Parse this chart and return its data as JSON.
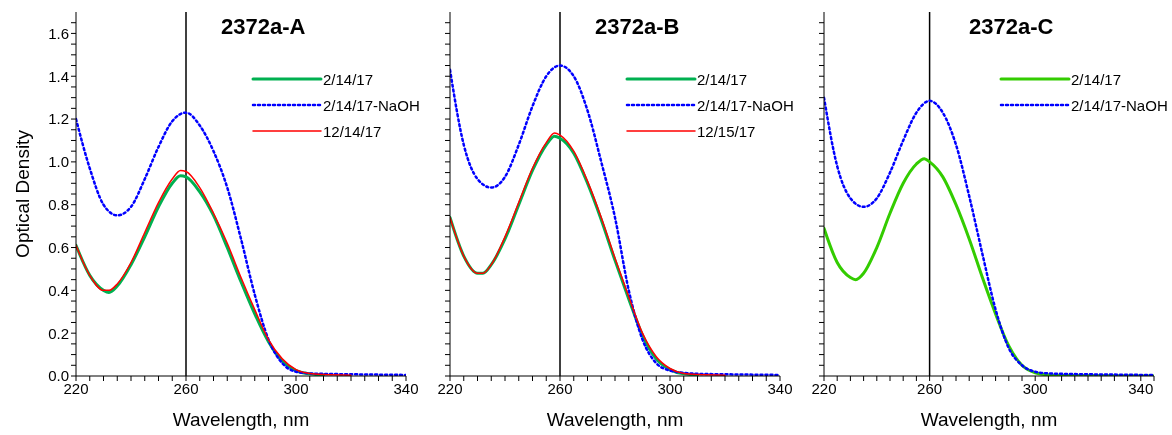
{
  "chart_data": [
    {
      "type": "line",
      "title": "2372a-A",
      "xlabel": "Wavelength, nm",
      "ylabel": "Optical Density",
      "xlim": [
        220,
        340
      ],
      "ylim": [
        0,
        1.7
      ],
      "legend": "top right",
      "grid": false,
      "marker": "none",
      "xticks": [
        220,
        {
          "value": 225,
          "label": null
        },
        {
          "value": 230,
          "label": null
        },
        {
          "value": 235,
          "label": null
        },
        {
          "value": 240,
          "label": null
        },
        {
          "value": 245,
          "label": null
        },
        {
          "value": 250,
          "label": null
        },
        {
          "value": 255,
          "label": null
        },
        260,
        {
          "value": 265,
          "label": null
        },
        {
          "value": 270,
          "label": null
        },
        {
          "value": 275,
          "label": null
        },
        {
          "value": 280,
          "label": null
        },
        {
          "value": 285,
          "label": null
        },
        {
          "value": 290,
          "label": null
        },
        {
          "value": 295,
          "label": null
        },
        300,
        {
          "value": 305,
          "label": null
        },
        {
          "value": 310,
          "label": null
        },
        {
          "value": 315,
          "label": null
        },
        {
          "value": 320,
          "label": null
        },
        {
          "value": 325,
          "label": null
        },
        {
          "value": 330,
          "label": null
        },
        {
          "value": 335,
          "label": null
        },
        340
      ],
      "yticks": [
        {
          "value": 0,
          "label": "0.0"
        },
        {
          "value": 0.05,
          "label": null
        },
        {
          "value": 0.1,
          "label": null
        },
        {
          "value": 0.15,
          "label": null
        },
        {
          "value": 0.2,
          "label": "0.2"
        },
        {
          "value": 0.25,
          "label": null
        },
        {
          "value": 0.3,
          "label": null
        },
        {
          "value": 0.35,
          "label": null
        },
        {
          "value": 0.4,
          "label": "0.4"
        },
        {
          "value": 0.45,
          "label": null
        },
        {
          "value": 0.5,
          "label": null
        },
        {
          "value": 0.55,
          "label": null
        },
        {
          "value": 0.6,
          "label": "0.6"
        },
        {
          "value": 0.65,
          "label": null
        },
        {
          "value": 0.7,
          "label": null
        },
        {
          "value": 0.75,
          "label": null
        },
        {
          "value": 0.8,
          "label": "0.8"
        },
        {
          "value": 0.85,
          "label": null
        },
        {
          "value": 0.9,
          "label": null
        },
        {
          "value": 0.95,
          "label": null
        },
        {
          "value": 1.0,
          "label": "1.0"
        },
        {
          "value": 1.05,
          "label": null
        },
        {
          "value": 1.1,
          "label": null
        },
        {
          "value": 1.15,
          "label": null
        },
        {
          "value": 1.2,
          "label": "1.2"
        },
        {
          "value": 1.25,
          "label": null
        },
        {
          "value": 1.3,
          "label": null
        },
        {
          "value": 1.35,
          "label": null
        },
        {
          "value": 1.4,
          "label": "1.4"
        },
        {
          "value": 1.45,
          "label": null
        },
        {
          "value": 1.5,
          "label": null
        },
        {
          "value": 1.55,
          "label": null
        },
        {
          "value": 1.6,
          "label": "1.6"
        },
        {
          "value": 1.65,
          "label": null
        }
      ],
      "ref_lines": [
        {
          "axis": "x",
          "value": 260,
          "label": null,
          "color": "#000000"
        }
      ],
      "series": [
        {
          "name": "2/14/17",
          "color": "#00b050",
          "line_style": "solid",
          "x": [
            220,
            225,
            230,
            232,
            235,
            240,
            245,
            250,
            255,
            258,
            260,
            265,
            270,
            275,
            280,
            285,
            290,
            295,
            300,
            305,
            310
          ],
          "values": [
            0.61,
            0.47,
            0.4,
            0.39,
            0.42,
            0.52,
            0.65,
            0.79,
            0.9,
            0.935,
            0.93,
            0.86,
            0.75,
            0.6,
            0.44,
            0.29,
            0.16,
            0.07,
            0.025,
            0.01,
            0.005
          ]
        },
        {
          "name": "2/14/17-NaOH",
          "color": "#0000ff",
          "line_style": "dotted",
          "x": [
            220,
            225,
            230,
            235,
            240,
            245,
            250,
            255,
            260,
            265,
            270,
            275,
            280,
            285,
            290,
            295,
            300,
            305,
            310,
            320,
            340
          ],
          "values": [
            1.2,
            0.97,
            0.8,
            0.75,
            0.79,
            0.92,
            1.07,
            1.19,
            1.23,
            1.17,
            1.05,
            0.88,
            0.64,
            0.38,
            0.17,
            0.06,
            0.02,
            0.012,
            0.01,
            0.008,
            0.005
          ]
        },
        {
          "name": "12/14/17",
          "color": "#ff0000",
          "line_style": "solid",
          "x": [
            220,
            225,
            230,
            232,
            235,
            240,
            245,
            250,
            255,
            258,
            260,
            265,
            270,
            275,
            280,
            285,
            290,
            295,
            300,
            305,
            310,
            320
          ],
          "values": [
            0.61,
            0.47,
            0.4,
            0.4,
            0.43,
            0.53,
            0.67,
            0.81,
            0.92,
            0.96,
            0.955,
            0.88,
            0.76,
            0.62,
            0.46,
            0.31,
            0.17,
            0.08,
            0.03,
            0.012,
            0.007,
            0.004
          ]
        }
      ]
    },
    {
      "type": "line",
      "title": "2372a-B",
      "xlabel": "Wavelength, nm",
      "xlim": [
        220,
        340
      ],
      "ylim": [
        0,
        1.7
      ],
      "legend": "top right",
      "grid": false,
      "marker": "none",
      "tick_labels": "x",
      "xticks": [
        220,
        {
          "value": 225,
          "label": null
        },
        {
          "value": 230,
          "label": null
        },
        {
          "value": 235,
          "label": null
        },
        {
          "value": 240,
          "label": null
        },
        {
          "value": 245,
          "label": null
        },
        {
          "value": 250,
          "label": null
        },
        {
          "value": 255,
          "label": null
        },
        260,
        {
          "value": 265,
          "label": null
        },
        {
          "value": 270,
          "label": null
        },
        {
          "value": 275,
          "label": null
        },
        {
          "value": 280,
          "label": null
        },
        {
          "value": 285,
          "label": null
        },
        {
          "value": 290,
          "label": null
        },
        {
          "value": 295,
          "label": null
        },
        300,
        {
          "value": 305,
          "label": null
        },
        {
          "value": 310,
          "label": null
        },
        {
          "value": 315,
          "label": null
        },
        {
          "value": 320,
          "label": null
        },
        {
          "value": 325,
          "label": null
        },
        {
          "value": 330,
          "label": null
        },
        {
          "value": 335,
          "label": null
        },
        340
      ],
      "yticks": [
        {
          "value": 0,
          "label": null
        },
        {
          "value": 0.05,
          "label": null
        },
        {
          "value": 0.1,
          "label": null
        },
        {
          "value": 0.15,
          "label": null
        },
        {
          "value": 0.2,
          "label": null
        },
        {
          "value": 0.25,
          "label": null
        },
        {
          "value": 0.3,
          "label": null
        },
        {
          "value": 0.35,
          "label": null
        },
        {
          "value": 0.4,
          "label": null
        },
        {
          "value": 0.45,
          "label": null
        },
        {
          "value": 0.5,
          "label": null
        },
        {
          "value": 0.55,
          "label": null
        },
        {
          "value": 0.6,
          "label": null
        },
        {
          "value": 0.65,
          "label": null
        },
        {
          "value": 0.7,
          "label": null
        },
        {
          "value": 0.75,
          "label": null
        },
        {
          "value": 0.8,
          "label": null
        },
        {
          "value": 0.85,
          "label": null
        },
        {
          "value": 0.9,
          "label": null
        },
        {
          "value": 0.95,
          "label": null
        },
        {
          "value": 1.0,
          "label": null
        },
        {
          "value": 1.05,
          "label": null
        },
        {
          "value": 1.1,
          "label": null
        },
        {
          "value": 1.15,
          "label": null
        },
        {
          "value": 1.2,
          "label": null
        },
        {
          "value": 1.25,
          "label": null
        },
        {
          "value": 1.3,
          "label": null
        },
        {
          "value": 1.35,
          "label": null
        },
        {
          "value": 1.4,
          "label": null
        },
        {
          "value": 1.45,
          "label": null
        },
        {
          "value": 1.5,
          "label": null
        },
        {
          "value": 1.55,
          "label": null
        },
        {
          "value": 1.6,
          "label": null
        },
        {
          "value": 1.65,
          "label": null
        }
      ],
      "ref_lines": [
        {
          "axis": "x",
          "value": 260,
          "label": null,
          "color": "#000000"
        }
      ],
      "series": [
        {
          "name": "2/14/17",
          "color": "#00b050",
          "line_style": "solid",
          "x": [
            220,
            225,
            230,
            232,
            235,
            240,
            245,
            250,
            255,
            258,
            260,
            265,
            270,
            275,
            280,
            285,
            290,
            295,
            300,
            305,
            310
          ],
          "values": [
            0.74,
            0.56,
            0.48,
            0.48,
            0.52,
            0.64,
            0.8,
            0.96,
            1.08,
            1.12,
            1.11,
            1.04,
            0.9,
            0.73,
            0.54,
            0.36,
            0.19,
            0.08,
            0.03,
            0.01,
            0.005
          ]
        },
        {
          "name": "2/14/17-NaOH",
          "color": "#0000ff",
          "line_style": "dotted",
          "x": [
            220,
            225,
            230,
            235,
            240,
            245,
            250,
            255,
            260,
            265,
            270,
            275,
            280,
            285,
            290,
            295,
            300,
            305,
            310,
            320,
            340
          ],
          "values": [
            1.43,
            1.08,
            0.92,
            0.88,
            0.93,
            1.08,
            1.26,
            1.4,
            1.45,
            1.4,
            1.24,
            1.0,
            0.74,
            0.4,
            0.17,
            0.06,
            0.025,
            0.015,
            0.01,
            0.008,
            0.005
          ]
        },
        {
          "name": "12/15/17",
          "color": "#ff0000",
          "line_style": "solid",
          "x": [
            220,
            225,
            230,
            232,
            235,
            240,
            245,
            250,
            255,
            258,
            260,
            265,
            270,
            275,
            280,
            285,
            290,
            295,
            300,
            305,
            310,
            320
          ],
          "values": [
            0.74,
            0.56,
            0.48,
            0.48,
            0.52,
            0.65,
            0.81,
            0.97,
            1.09,
            1.135,
            1.125,
            1.05,
            0.91,
            0.74,
            0.55,
            0.37,
            0.2,
            0.09,
            0.035,
            0.012,
            0.007,
            0.004
          ]
        }
      ]
    },
    {
      "type": "line",
      "title": "2372a-C",
      "xlabel": "Wavelength, nm",
      "xlim": [
        220,
        345
      ],
      "ylim": [
        0,
        1.7
      ],
      "legend": "top right",
      "grid": false,
      "marker": "none",
      "tick_labels": "x",
      "xticks": [
        220,
        {
          "value": 225,
          "label": null
        },
        {
          "value": 230,
          "label": null
        },
        {
          "value": 235,
          "label": null
        },
        {
          "value": 240,
          "label": null
        },
        {
          "value": 245,
          "label": null
        },
        {
          "value": 250,
          "label": null
        },
        {
          "value": 255,
          "label": null
        },
        260,
        {
          "value": 265,
          "label": null
        },
        {
          "value": 270,
          "label": null
        },
        {
          "value": 275,
          "label": null
        },
        {
          "value": 280,
          "label": null
        },
        {
          "value": 285,
          "label": null
        },
        {
          "value": 290,
          "label": null
        },
        {
          "value": 295,
          "label": null
        },
        300,
        {
          "value": 305,
          "label": null
        },
        {
          "value": 310,
          "label": null
        },
        {
          "value": 315,
          "label": null
        },
        {
          "value": 320,
          "label": null
        },
        {
          "value": 325,
          "label": null
        },
        {
          "value": 330,
          "label": null
        },
        {
          "value": 335,
          "label": null
        },
        340,
        {
          "value": 345,
          "label": null
        }
      ],
      "yticks": [
        {
          "value": 0,
          "label": null
        },
        {
          "value": 0.05,
          "label": null
        },
        {
          "value": 0.1,
          "label": null
        },
        {
          "value": 0.15,
          "label": null
        },
        {
          "value": 0.2,
          "label": null
        },
        {
          "value": 0.25,
          "label": null
        },
        {
          "value": 0.3,
          "label": null
        },
        {
          "value": 0.35,
          "label": null
        },
        {
          "value": 0.4,
          "label": null
        },
        {
          "value": 0.45,
          "label": null
        },
        {
          "value": 0.5,
          "label": null
        },
        {
          "value": 0.55,
          "label": null
        },
        {
          "value": 0.6,
          "label": null
        },
        {
          "value": 0.65,
          "label": null
        },
        {
          "value": 0.7,
          "label": null
        },
        {
          "value": 0.75,
          "label": null
        },
        {
          "value": 0.8,
          "label": null
        },
        {
          "value": 0.85,
          "label": null
        },
        {
          "value": 0.9,
          "label": null
        },
        {
          "value": 0.95,
          "label": null
        },
        {
          "value": 1.0,
          "label": null
        },
        {
          "value": 1.05,
          "label": null
        },
        {
          "value": 1.1,
          "label": null
        },
        {
          "value": 1.15,
          "label": null
        },
        {
          "value": 1.2,
          "label": null
        },
        {
          "value": 1.25,
          "label": null
        },
        {
          "value": 1.3,
          "label": null
        },
        {
          "value": 1.35,
          "label": null
        },
        {
          "value": 1.4,
          "label": null
        },
        {
          "value": 1.45,
          "label": null
        },
        {
          "value": 1.5,
          "label": null
        },
        {
          "value": 1.55,
          "label": null
        },
        {
          "value": 1.6,
          "label": null
        },
        {
          "value": 1.65,
          "label": null
        }
      ],
      "ref_lines": [
        {
          "axis": "x",
          "value": 260,
          "label": null,
          "color": "#000000"
        }
      ],
      "series": [
        {
          "name": "2/14/17",
          "color": "#33cc00",
          "line_style": "solid",
          "x": [
            220,
            225,
            230,
            232,
            235,
            240,
            245,
            250,
            255,
            258,
            260,
            265,
            270,
            275,
            280,
            285,
            290,
            295,
            300,
            305,
            310,
            345
          ],
          "values": [
            0.69,
            0.53,
            0.46,
            0.45,
            0.48,
            0.6,
            0.76,
            0.9,
            0.99,
            1.015,
            1.0,
            0.93,
            0.8,
            0.64,
            0.46,
            0.29,
            0.14,
            0.05,
            0.015,
            0.005,
            0.002,
            0
          ]
        },
        {
          "name": "2/14/17-NaOH",
          "color": "#0000ff",
          "line_style": "dotted",
          "x": [
            220,
            225,
            230,
            235,
            240,
            245,
            250,
            255,
            260,
            265,
            270,
            275,
            280,
            285,
            290,
            295,
            300,
            305,
            310,
            320,
            340,
            345
          ],
          "values": [
            1.3,
            0.98,
            0.83,
            0.79,
            0.83,
            0.95,
            1.1,
            1.23,
            1.285,
            1.23,
            1.08,
            0.84,
            0.57,
            0.31,
            0.13,
            0.05,
            0.02,
            0.012,
            0.01,
            0.008,
            0.005,
            0.004
          ]
        }
      ]
    }
  ]
}
